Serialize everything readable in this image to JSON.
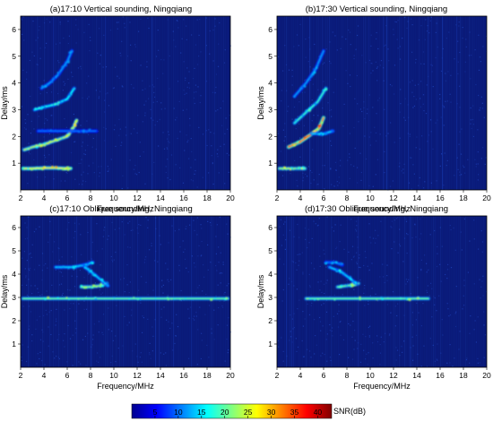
{
  "figure": {
    "panels": [
      {
        "title": "(a)17:10 Vertical sounding, Ningqiang",
        "mode": "vertical",
        "time": "17:10"
      },
      {
        "title": "(b)17:30 Vertical sounding, Ningqiang",
        "mode": "vertical",
        "time": "17:30"
      },
      {
        "title": "(c)17:10 Oblique sounding, Ningqiang",
        "mode": "oblique",
        "time": "17:10"
      },
      {
        "title": "(d)17:30 Oblique sounding, Ningqiang",
        "mode": "oblique",
        "time": "17:30"
      }
    ],
    "colorbar": {
      "label": "SNR(dB)",
      "ticks": [
        "5",
        "10",
        "15",
        "20",
        "25",
        "30",
        "35",
        "40"
      ],
      "range": [
        0,
        43
      ],
      "colormap": "jet",
      "colors": [
        "#00008f",
        "#0000ff",
        "#0080ff",
        "#00ffff",
        "#80ff80",
        "#ffff00",
        "#ff8000",
        "#ff0000",
        "#800000"
      ]
    },
    "background_color": "#0a1a78"
  },
  "chart_data": [
    {
      "type": "heatmap",
      "title": "(a)17:10 Vertical sounding, Ningqiang",
      "xlabel": "Frequency/MHz",
      "ylabel": "Delay/ms",
      "xlim": [
        2,
        20
      ],
      "ylim": [
        0,
        6.5
      ],
      "xticks": [
        2,
        4,
        6,
        8,
        10,
        12,
        14,
        16,
        18,
        20
      ],
      "yticks": [
        1,
        2,
        3,
        4,
        5,
        6
      ],
      "traces": [
        {
          "points": [
            [
              2.2,
              0.8
            ],
            [
              3,
              0.8
            ],
            [
              4,
              0.82
            ],
            [
              5,
              0.82
            ],
            [
              6,
              0.8
            ],
            [
              6.3,
              0.8
            ]
          ],
          "snr": 26
        },
        {
          "points": [
            [
              2.3,
              1.5
            ],
            [
              3,
              1.6
            ],
            [
              4,
              1.7
            ],
            [
              5,
              1.85
            ],
            [
              6,
              2.0
            ],
            [
              6.5,
              2.3
            ],
            [
              6.8,
              2.6
            ]
          ],
          "snr": 24
        },
        {
          "points": [
            [
              3.2,
              3.0
            ],
            [
              4,
              3.1
            ],
            [
              5,
              3.2
            ],
            [
              6,
              3.4
            ],
            [
              6.6,
              3.8
            ]
          ],
          "snr": 16
        },
        {
          "points": [
            [
              3.8,
              3.8
            ],
            [
              4.5,
              4.0
            ],
            [
              5.2,
              4.3
            ],
            [
              6,
              4.8
            ],
            [
              6.4,
              5.2
            ]
          ],
          "snr": 12
        },
        {
          "points": [
            [
              3.5,
              2.2
            ],
            [
              5,
              2.2
            ],
            [
              7.5,
              2.2
            ],
            [
              8.5,
              2.2
            ]
          ],
          "snr": 10
        }
      ]
    },
    {
      "type": "heatmap",
      "title": "(b)17:30 Vertical sounding, Ningqiang",
      "xlabel": "Frequency/MHz",
      "ylabel": "Delay/ms",
      "xlim": [
        2,
        20
      ],
      "ylim": [
        0,
        6.5
      ],
      "xticks": [
        2,
        4,
        6,
        8,
        10,
        12,
        14,
        16,
        18,
        20
      ],
      "yticks": [
        1,
        2,
        3,
        4,
        5,
        6
      ],
      "traces": [
        {
          "points": [
            [
              2.2,
              0.8
            ],
            [
              3,
              0.8
            ],
            [
              4,
              0.8
            ],
            [
              4.4,
              0.8
            ]
          ],
          "snr": 22
        },
        {
          "points": [
            [
              3,
              1.6
            ],
            [
              4,
              1.8
            ],
            [
              5,
              2.1
            ],
            [
              5.6,
              2.3
            ],
            [
              6,
              2.7
            ]
          ],
          "snr": 32
        },
        {
          "points": [
            [
              3.5,
              2.5
            ],
            [
              4.5,
              2.9
            ],
            [
              5.5,
              3.3
            ],
            [
              6.2,
              3.8
            ]
          ],
          "snr": 18
        },
        {
          "points": [
            [
              3.5,
              3.5
            ],
            [
              4.5,
              4.0
            ],
            [
              5.3,
              4.5
            ],
            [
              6,
              5.2
            ]
          ],
          "snr": 12
        },
        {
          "points": [
            [
              5,
              2.1
            ],
            [
              6,
              2.1
            ],
            [
              6.8,
              2.2
            ]
          ],
          "snr": 14
        }
      ]
    },
    {
      "type": "heatmap",
      "title": "(c)17:10 Oblique sounding, Ningqiang",
      "xlabel": "Frequency/MHz",
      "ylabel": "Delay/ms",
      "xlim": [
        2,
        20
      ],
      "ylim": [
        0,
        6.5
      ],
      "xticks": [
        2,
        4,
        6,
        8,
        10,
        12,
        14,
        16,
        18,
        20
      ],
      "yticks": [
        1,
        2,
        3,
        4,
        5,
        6
      ],
      "traces": [
        {
          "points": [
            [
              2.2,
              2.95
            ],
            [
              6,
              2.95
            ],
            [
              10,
              2.95
            ],
            [
              14,
              2.95
            ],
            [
              18,
              2.95
            ],
            [
              19.8,
              2.95
            ]
          ],
          "snr": 20
        },
        {
          "points": [
            [
              7.2,
              3.45
            ],
            [
              8,
              3.45
            ],
            [
              8.8,
              3.5
            ],
            [
              9.4,
              3.6
            ]
          ],
          "snr": 22
        },
        {
          "points": [
            [
              5,
              4.3
            ],
            [
              6.5,
              4.3
            ],
            [
              7.5,
              4.4
            ],
            [
              8.2,
              4.5
            ]
          ],
          "snr": 14
        },
        {
          "points": [
            [
              7.5,
              4.3
            ],
            [
              8.3,
              4.0
            ],
            [
              9,
              3.7
            ],
            [
              9.5,
              3.5
            ]
          ],
          "snr": 14
        }
      ]
    },
    {
      "type": "heatmap",
      "title": "(d)17:30 Oblique sounding, Ningqiang",
      "xlabel": "Frequency/MHz",
      "ylabel": "Delay/ms",
      "xlim": [
        2,
        20
      ],
      "ylim": [
        0,
        6.5
      ],
      "xticks": [
        2,
        4,
        6,
        8,
        10,
        12,
        14,
        16,
        18,
        20
      ],
      "yticks": [
        1,
        2,
        3,
        4,
        5,
        6
      ],
      "traces": [
        {
          "points": [
            [
              4.5,
              2.95
            ],
            [
              8,
              2.95
            ],
            [
              12,
              2.95
            ],
            [
              15,
              2.95
            ]
          ],
          "snr": 20
        },
        {
          "points": [
            [
              7.2,
              3.45
            ],
            [
              8,
              3.5
            ],
            [
              8.6,
              3.55
            ],
            [
              9,
              3.6
            ]
          ],
          "snr": 20
        },
        {
          "points": [
            [
              6.5,
              4.3
            ],
            [
              7.5,
              4.1
            ],
            [
              8.3,
              3.8
            ],
            [
              8.8,
              3.6
            ]
          ],
          "snr": 14
        },
        {
          "points": [
            [
              6.2,
              4.5
            ],
            [
              7,
              4.5
            ],
            [
              7.6,
              4.4
            ]
          ],
          "snr": 12
        }
      ]
    }
  ]
}
